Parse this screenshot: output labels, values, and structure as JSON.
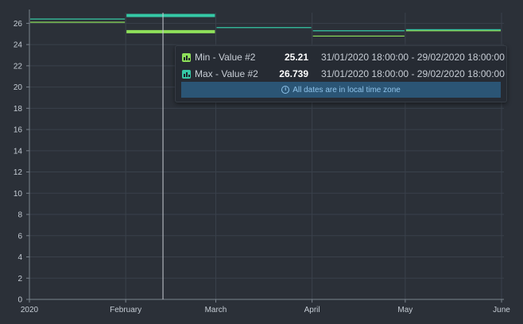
{
  "chart_data": {
    "type": "line",
    "x_tick_labels": [
      "2020",
      "February",
      "March",
      "April",
      "May",
      "June"
    ],
    "x_ticks": [
      "2020-01-01",
      "2020-02-01",
      "2020-03-01",
      "2020-04-01",
      "2020-05-01",
      "2020-06-01"
    ],
    "y_ticks": [
      0,
      2,
      4,
      6,
      8,
      10,
      12,
      14,
      16,
      18,
      20,
      22,
      24,
      26
    ],
    "ylim": [
      0,
      27
    ],
    "xlim": [
      "2020-01-01",
      "2020-06-01"
    ],
    "grid": true,
    "cursor_date": "2020-02-13",
    "series": [
      {
        "name": "Min - Value #2",
        "color": "#8ee05a",
        "segments": [
          {
            "start": "2020-01-01",
            "end": "2020-02-01",
            "value": 26.1
          },
          {
            "start": "2020-02-01",
            "end": "2020-03-01",
            "value": 25.21
          },
          {
            "start": "2020-04-01",
            "end": "2020-05-01",
            "value": 24.8
          },
          {
            "start": "2020-05-01",
            "end": "2020-06-01",
            "value": 25.3
          }
        ]
      },
      {
        "name": "Max - Value #2",
        "color": "#35c9a6",
        "segments": [
          {
            "start": "2020-01-01",
            "end": "2020-02-01",
            "value": 26.4
          },
          {
            "start": "2020-02-01",
            "end": "2020-03-01",
            "value": 26.739
          },
          {
            "start": "2020-03-01",
            "end": "2020-04-01",
            "value": 25.6
          },
          {
            "start": "2020-04-01",
            "end": "2020-05-01",
            "value": 25.3
          },
          {
            "start": "2020-05-01",
            "end": "2020-06-01",
            "value": 25.4
          }
        ]
      }
    ],
    "highlight_period": {
      "start": "2020-02-01",
      "end": "2020-03-01"
    }
  },
  "tooltip": {
    "rows": [
      {
        "name": "Min - Value #2",
        "value": "25.21",
        "range": "31/01/2020 18:00:00 - 29/02/2020 18:00:00",
        "color": "#8ee05a"
      },
      {
        "name": "Max - Value #2",
        "value": "26.739",
        "range": "31/01/2020 18:00:00 - 29/02/2020 18:00:00",
        "color": "#35c9a6"
      }
    ],
    "note": "All dates are in local time zone",
    "note_icon": "info-icon"
  }
}
